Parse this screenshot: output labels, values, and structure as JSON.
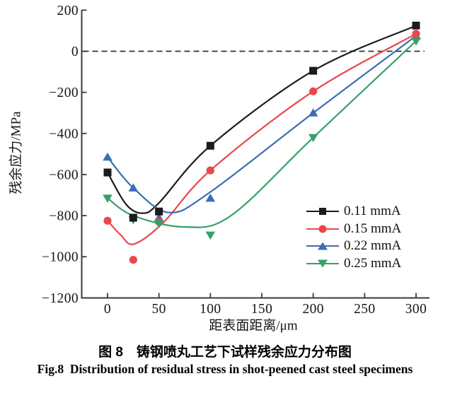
{
  "figure": {
    "caption_cn": "图 8　铸钢喷丸工艺下试样残余应力分布图",
    "caption_en": "Fig.8  Distribution of residual stress in shot-peened cast steel specimens"
  },
  "chart_data": {
    "type": "line",
    "title": "",
    "xlabel": "距表面距离/μm",
    "ylabel": "残余应力/MPa",
    "xlim": [
      0,
      300
    ],
    "ylim": [
      -1200,
      200
    ],
    "x_ticks": [
      0,
      50,
      100,
      150,
      200,
      250,
      300
    ],
    "y_ticks": [
      200,
      0,
      -200,
      -400,
      -600,
      -800,
      -1000,
      -1200
    ],
    "grid": false,
    "zero_line": {
      "value": 0,
      "style": "dashed",
      "color": "#333333"
    },
    "legend_position": "inside-bottom-right",
    "axis_color": "#3a3a3a",
    "series": [
      {
        "name": "0.11 mmA",
        "color": "#1b1b1b",
        "marker": "square",
        "points": [
          [
            0,
            -590
          ],
          [
            25,
            -810
          ],
          [
            50,
            -780
          ],
          [
            100,
            -460
          ],
          [
            200,
            -95
          ],
          [
            300,
            125
          ]
        ],
        "curve": [
          [
            0,
            -590
          ],
          [
            18,
            -745
          ],
          [
            34,
            -788
          ],
          [
            50,
            -738
          ],
          [
            100,
            -460
          ],
          [
            200,
            -95
          ],
          [
            300,
            125
          ]
        ]
      },
      {
        "name": "0.15 mmA",
        "color": "#e8484b",
        "marker": "circle",
        "points": [
          [
            0,
            -825
          ],
          [
            25,
            -1015
          ],
          [
            50,
            -830
          ],
          [
            100,
            -580
          ],
          [
            200,
            -195
          ],
          [
            300,
            85
          ]
        ],
        "curve": [
          [
            0,
            -825
          ],
          [
            13,
            -895
          ],
          [
            26,
            -938
          ],
          [
            55,
            -830
          ],
          [
            100,
            -580
          ],
          [
            200,
            -195
          ],
          [
            300,
            85
          ]
        ]
      },
      {
        "name": "0.22 mmA",
        "color": "#3b6db5",
        "marker": "triangle-up",
        "points": [
          [
            0,
            -515
          ],
          [
            25,
            -665
          ],
          [
            50,
            -810
          ],
          [
            100,
            -715
          ],
          [
            200,
            -300
          ],
          [
            300,
            75
          ]
        ],
        "curve": [
          [
            0,
            -515
          ],
          [
            25,
            -665
          ],
          [
            60,
            -785
          ],
          [
            100,
            -685
          ],
          [
            200,
            -300
          ],
          [
            300,
            75
          ]
        ]
      },
      {
        "name": "0.25 mmA",
        "color": "#35a06a",
        "marker": "triangle-down",
        "points": [
          [
            0,
            -715
          ],
          [
            25,
            -820
          ],
          [
            50,
            -838
          ],
          [
            100,
            -895
          ],
          [
            200,
            -420
          ],
          [
            300,
            50
          ]
        ],
        "curve": [
          [
            0,
            -715
          ],
          [
            25,
            -800
          ],
          [
            75,
            -855
          ],
          [
            120,
            -800
          ],
          [
            200,
            -420
          ],
          [
            300,
            50
          ]
        ]
      }
    ]
  }
}
